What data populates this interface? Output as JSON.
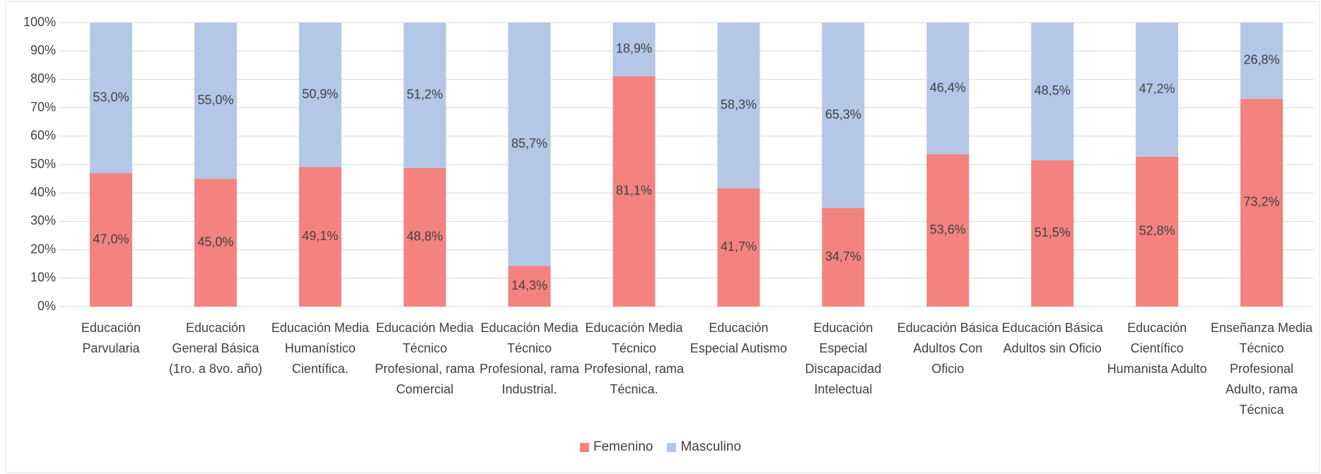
{
  "chart_data": {
    "type": "stacked_bar",
    "categories": [
      "Educación Parvularia",
      "Educación General Básica (1ro. a 8vo. año)",
      "Educación Media Humanístico Científica.",
      "Educación Media Técnico Profesional, rama Comercial",
      "Educación Media Técnico Profesional, rama Industrial.",
      "Educación Media Técnico Profesional, rama Técnica.",
      "Educación Especial Autismo",
      "Educación Especial Discapacidad Intelectual",
      "Educación Básica Adultos Con Oficio",
      "Educación Básica Adultos sin Oficio",
      "Educación Científico Humanista Adulto",
      "Enseñanza Media Técnico Profesional Adulto, rama Técnica"
    ],
    "series": [
      {
        "name": "Femenino",
        "color": "#f4837f",
        "values": [
          47.0,
          45.0,
          49.1,
          48.8,
          14.3,
          81.1,
          41.7,
          34.7,
          53.6,
          51.5,
          52.8,
          73.2
        ],
        "value_labels": [
          "47,0%",
          "45,0%",
          "49,1%",
          "48,8%",
          "14,3%",
          "81,1%",
          "41,7%",
          "34,7%",
          "53,6%",
          "51,5%",
          "52,8%",
          "73,2%"
        ]
      },
      {
        "name": "Masculino",
        "color": "#b4c7e7",
        "values": [
          53.0,
          55.0,
          50.9,
          51.2,
          85.7,
          18.9,
          58.3,
          65.3,
          46.4,
          48.5,
          47.2,
          26.8
        ],
        "value_labels": [
          "53,0%",
          "55,0%",
          "50,9%",
          "51,2%",
          "85,7%",
          "18,9%",
          "58,3%",
          "65,3%",
          "46,4%",
          "48,5%",
          "47,2%",
          "26,8%"
        ]
      }
    ],
    "ylim": [
      0,
      100
    ],
    "yticks": [
      {
        "value": 0,
        "label": "0%"
      },
      {
        "value": 10,
        "label": "10%"
      },
      {
        "value": 20,
        "label": "20%"
      },
      {
        "value": 30,
        "label": "30%"
      },
      {
        "value": 40,
        "label": "40%"
      },
      {
        "value": 50,
        "label": "50%"
      },
      {
        "value": 60,
        "label": "60%"
      },
      {
        "value": 70,
        "label": "70%"
      },
      {
        "value": 80,
        "label": "80%"
      },
      {
        "value": 90,
        "label": "90%"
      },
      {
        "value": 100,
        "label": "100%"
      }
    ],
    "grid": true,
    "legend": "bottom"
  }
}
